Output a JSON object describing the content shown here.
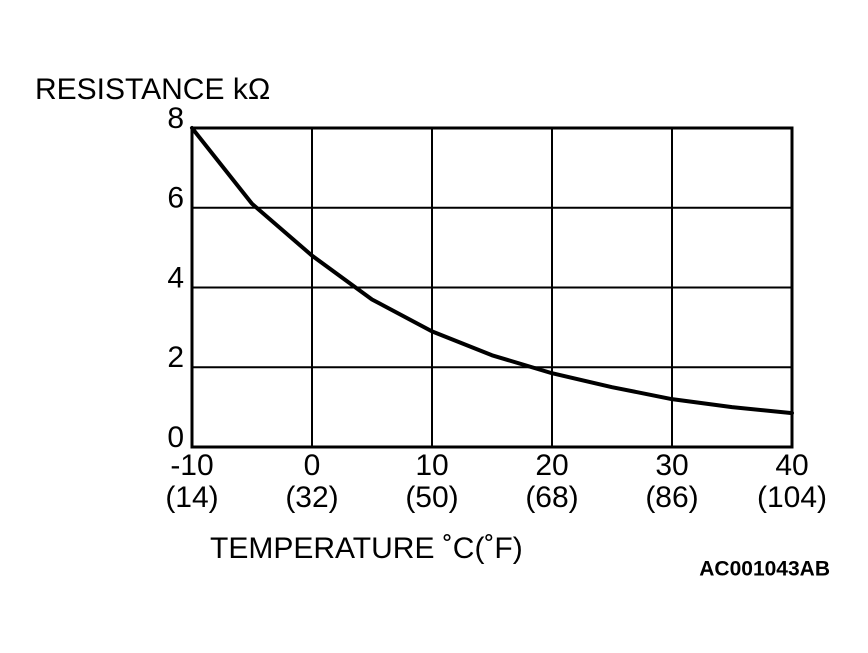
{
  "chart_data": {
    "type": "line",
    "title": "RESISTANCE kΩ",
    "x_label": "TEMPERATURE ˚C(˚F)",
    "code": "AC001043AB",
    "x": [
      -10,
      -5,
      0,
      5,
      10,
      15,
      20,
      25,
      30,
      35,
      40
    ],
    "series": [
      {
        "color": "#000000",
        "values": [
          8,
          6.1,
          4.8,
          3.7,
          2.9,
          2.3,
          1.85,
          1.5,
          1.2,
          1.0,
          0.85
        ]
      }
    ],
    "xlim": [
      -10,
      40
    ],
    "xticks": [
      -10,
      0,
      10,
      20,
      30,
      40
    ],
    "xtick_sublabels": [
      "(14)",
      "(32)",
      "(50)",
      "(68)",
      "(86)",
      "(104)"
    ],
    "ylim": [
      0,
      8
    ],
    "yticks": [
      0,
      2,
      4,
      6,
      8
    ],
    "grid": true
  }
}
